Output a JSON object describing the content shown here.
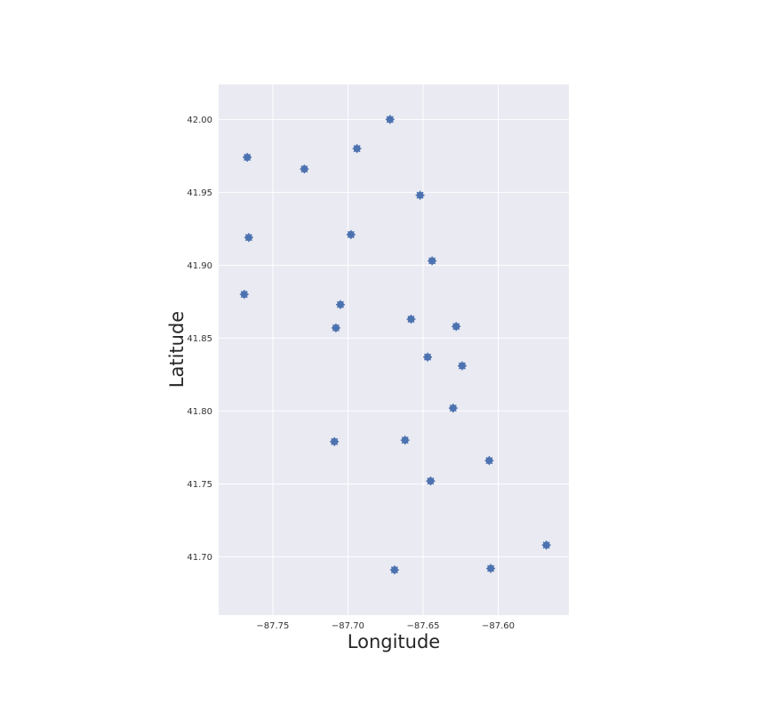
{
  "chart_data": {
    "type": "scatter",
    "title": "",
    "xlabel": "Longitude",
    "ylabel": "Latitude",
    "xlim": [
      -87.786,
      -87.553
    ],
    "ylim": [
      41.66,
      42.024
    ],
    "xticks": [
      -87.75,
      -87.7,
      -87.65,
      -87.6
    ],
    "xtick_labels": [
      "−87.75",
      "−87.70",
      "−87.65",
      "−87.60"
    ],
    "yticks": [
      41.7,
      41.75,
      41.8,
      41.85,
      41.9,
      41.95,
      42.0
    ],
    "ytick_labels": [
      "41.70",
      "41.75",
      "41.80",
      "41.85",
      "41.90",
      "41.95",
      "42.00"
    ],
    "grid": true,
    "background": "#EAEAF2",
    "marker_color": "#4C72B0",
    "marker": "star",
    "points": [
      {
        "x": -87.672,
        "y": 42.0
      },
      {
        "x": -87.694,
        "y": 41.98
      },
      {
        "x": -87.767,
        "y": 41.974
      },
      {
        "x": -87.729,
        "y": 41.966
      },
      {
        "x": -87.652,
        "y": 41.948
      },
      {
        "x": -87.698,
        "y": 41.921
      },
      {
        "x": -87.766,
        "y": 41.919
      },
      {
        "x": -87.644,
        "y": 41.903
      },
      {
        "x": -87.769,
        "y": 41.88
      },
      {
        "x": -87.705,
        "y": 41.873
      },
      {
        "x": -87.658,
        "y": 41.863
      },
      {
        "x": -87.628,
        "y": 41.858
      },
      {
        "x": -87.708,
        "y": 41.857
      },
      {
        "x": -87.647,
        "y": 41.837
      },
      {
        "x": -87.624,
        "y": 41.831
      },
      {
        "x": -87.63,
        "y": 41.802
      },
      {
        "x": -87.662,
        "y": 41.78
      },
      {
        "x": -87.709,
        "y": 41.779
      },
      {
        "x": -87.606,
        "y": 41.766
      },
      {
        "x": -87.645,
        "y": 41.752
      },
      {
        "x": -87.568,
        "y": 41.708
      },
      {
        "x": -87.605,
        "y": 41.692
      },
      {
        "x": -87.669,
        "y": 41.691
      }
    ]
  }
}
